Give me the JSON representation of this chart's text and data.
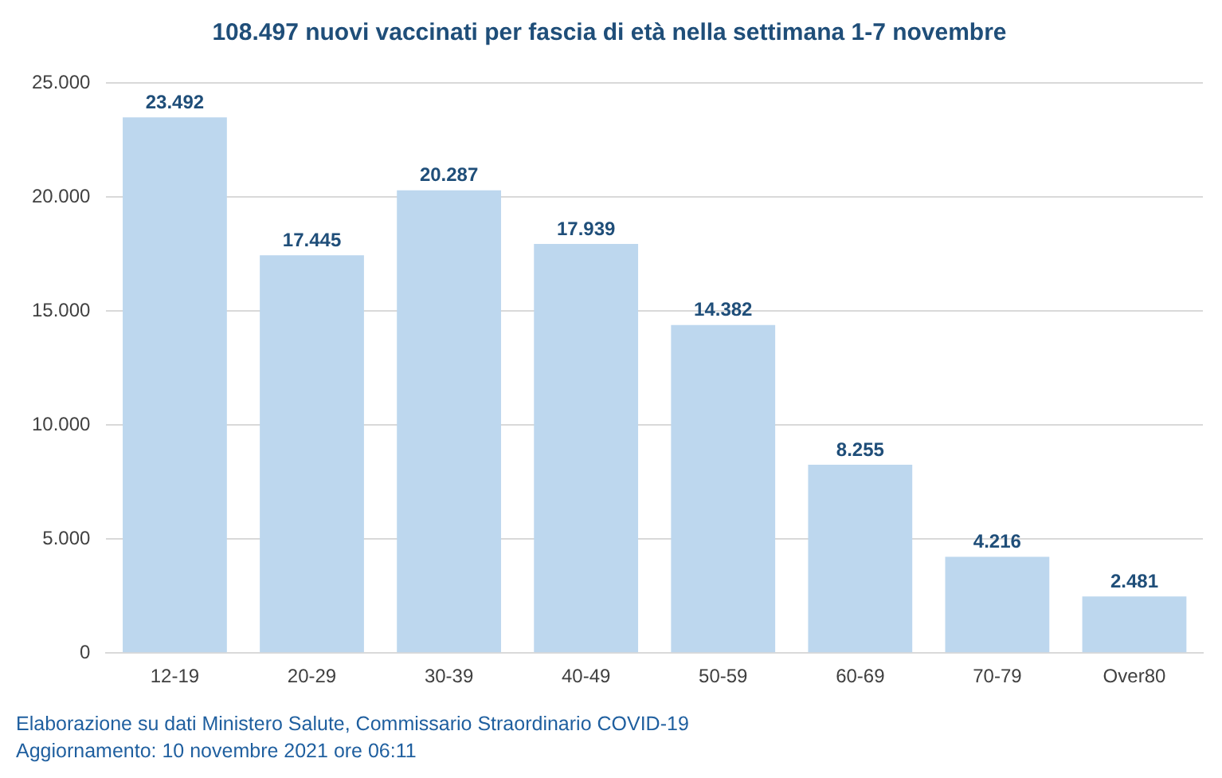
{
  "chart_data": {
    "type": "bar",
    "title": "108.497 nuovi vaccinati per fascia di età nella settimana 1-7 novembre",
    "categories": [
      "12-19",
      "20-29",
      "30-39",
      "40-49",
      "50-59",
      "60-69",
      "70-79",
      "Over80"
    ],
    "values": [
      23492,
      17445,
      20287,
      17939,
      14382,
      8255,
      4216,
      2481
    ],
    "value_labels": [
      "23.492",
      "17.445",
      "20.287",
      "17.939",
      "14.382",
      "8.255",
      "4.216",
      "2.481"
    ],
    "color": "#bdd7ee",
    "ylim": [
      0,
      25000
    ],
    "yticks": [
      {
        "value": 0,
        "label": "0"
      },
      {
        "value": 5000,
        "label": "5.000"
      },
      {
        "value": 10000,
        "label": "10.000"
      },
      {
        "value": 15000,
        "label": "15.000"
      },
      {
        "value": 20000,
        "label": "20.000"
      },
      {
        "value": 25000,
        "label": "25.000"
      }
    ],
    "grid": "y",
    "annotations": [
      "Elaborazione su dati Ministero Salute, Commissario Straordinario COVID-19",
      "Aggiornamento: 10 novembre 2021 ore 06:11"
    ]
  }
}
